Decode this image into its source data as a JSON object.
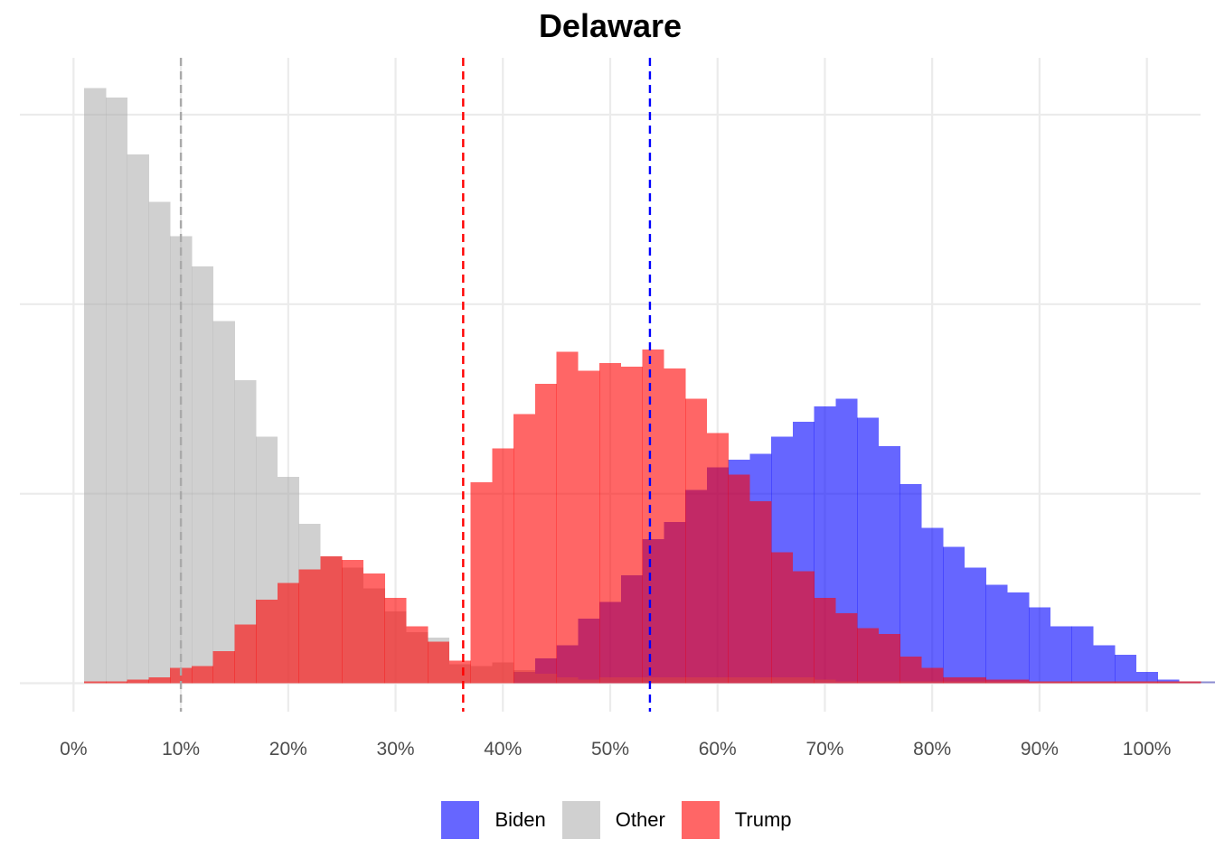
{
  "chart_data": {
    "type": "histogram",
    "title": "Delaware",
    "xlabel": "",
    "ylabel": "",
    "xlim": [
      -0.05,
      1.05
    ],
    "x_ticks": [
      0,
      0.1,
      0.2,
      0.3,
      0.4,
      0.5,
      0.6,
      0.7,
      0.8,
      0.9,
      1.0
    ],
    "x_tick_labels": [
      "0%",
      "10%",
      "20%",
      "30%",
      "40%",
      "50%",
      "60%",
      "70%",
      "80%",
      "90%",
      "100%"
    ],
    "y_gridlines": [
      0,
      100,
      200,
      300
    ],
    "ylim": [
      -15,
      330
    ],
    "y_tick_labels_shown": false,
    "grid": true,
    "legend_position": "bottom",
    "bin_width": 0.02,
    "bin_start": 0.01,
    "series": [
      {
        "name": "Biden",
        "color": "#6666ff",
        "mean_line": 0.537,
        "mean_line_color": "#0000ff",
        "counts": [
          0,
          0,
          0,
          0,
          0,
          0,
          0,
          0,
          0,
          0,
          0,
          0,
          0,
          0,
          0,
          0,
          0,
          0,
          0,
          0,
          6,
          13,
          20,
          34,
          43,
          57,
          76,
          85,
          102,
          114,
          118,
          121,
          130,
          138,
          146,
          150,
          140,
          125,
          105,
          82,
          72,
          61,
          52,
          48,
          40,
          30,
          30,
          20,
          15,
          6,
          2,
          1,
          1,
          0,
          0,
          0,
          0,
          0,
          0,
          0,
          0,
          0,
          0,
          0,
          0,
          0,
          0,
          0,
          0,
          0,
          0,
          0
        ]
      },
      {
        "name": "Other",
        "color": "#d0d0d0",
        "mean_line": 0.1,
        "mean_line_color": "#a9a9a9",
        "counts": [
          314,
          309,
          279,
          254,
          236,
          220,
          191,
          160,
          130,
          109,
          84,
          67,
          61,
          50,
          38,
          27,
          24,
          10,
          9,
          11,
          7,
          5,
          3,
          2,
          3,
          3,
          3,
          3,
          3,
          3,
          3,
          3,
          3,
          3,
          2,
          1,
          1,
          1,
          1,
          1,
          1,
          1,
          1,
          1,
          1,
          1,
          1,
          1,
          1,
          1,
          1,
          1,
          1,
          1,
          0,
          0,
          0,
          0,
          0,
          0,
          0,
          0,
          0,
          0,
          0,
          0,
          0,
          0,
          0,
          0,
          0,
          0
        ]
      },
      {
        "name": "Trump",
        "color": "#ff6666",
        "mean_line": 0.363,
        "mean_line_color": "#ff0000",
        "counts": [
          1,
          1,
          2,
          3,
          8,
          9,
          17,
          31,
          44,
          53,
          60,
          67,
          65,
          58,
          45,
          30,
          22,
          12,
          106,
          124,
          142,
          158,
          175,
          165,
          169,
          167,
          176,
          166,
          150,
          132,
          110,
          96,
          69,
          59,
          45,
          37,
          29,
          26,
          14,
          8,
          3,
          3,
          2,
          2,
          1,
          1,
          1,
          1,
          1,
          1,
          1,
          1,
          0,
          0,
          0,
          0,
          0,
          0,
          0,
          0,
          0,
          0,
          0,
          0,
          0,
          0,
          0,
          0,
          0,
          0,
          0,
          0
        ]
      }
    ]
  },
  "legend": {
    "items": [
      {
        "label": "Biden",
        "color": "#6666ff"
      },
      {
        "label": "Other",
        "color": "#d0d0d0"
      },
      {
        "label": "Trump",
        "color": "#ff6666"
      }
    ]
  }
}
